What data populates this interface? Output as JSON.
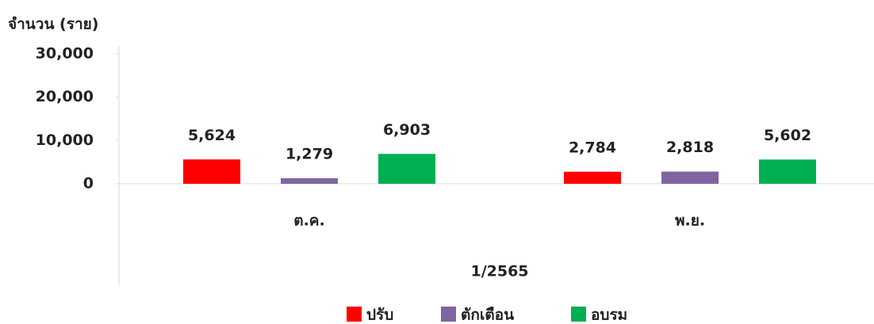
{
  "chart_data": {
    "type": "bar",
    "y_label": "จำนวน (ราย)",
    "x_group_label": "1/2565",
    "categories": [
      "ต.ค.",
      "พ.ย."
    ],
    "series": [
      {
        "name": "ปรับ",
        "color": "#ff0000",
        "values": [
          5624,
          2784
        ],
        "value_labels": [
          "5,624",
          "2,784"
        ]
      },
      {
        "name": "ตักเตือน",
        "color": "#8064a2",
        "values": [
          1279,
          2818
        ],
        "value_labels": [
          "1,279",
          "2,818"
        ]
      },
      {
        "name": "อบรม",
        "color": "#00b050",
        "values": [
          6903,
          5602
        ],
        "value_labels": [
          "6,903",
          "5,602"
        ]
      }
    ],
    "ylim": [
      0,
      30000
    ],
    "yticks": [
      0,
      {
        "value": 10000,
        "label": "10,000"
      },
      {
        "value": 20000,
        "label": "20,000"
      },
      {
        "value": 30000,
        "label": "30,000"
      }
    ],
    "grid": false
  }
}
